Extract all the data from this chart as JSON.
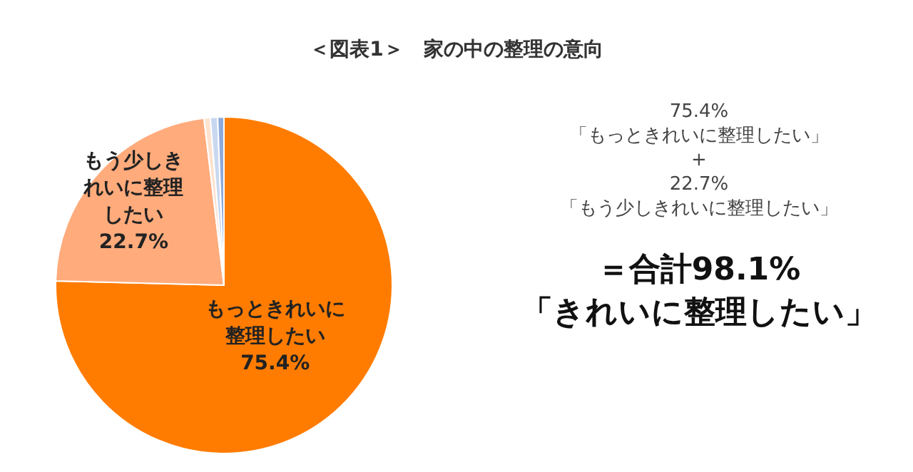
{
  "chart_data": {
    "type": "pie",
    "title": "＜図表1＞　家の中の整理の意向",
    "categories": [
      "もっときれいに整理したい",
      "もう少しきれいに整理したい",
      null,
      null,
      null
    ],
    "values": [
      75.4,
      22.7,
      0.6,
      0.7,
      0.6
    ],
    "colors": [
      "#ff7c00",
      "#ffab7c",
      "#fde3cf",
      "#c9d8f0",
      "#8eaadb"
    ],
    "value_labels": [
      "75.4%",
      "22.7%",
      null,
      null,
      null
    ],
    "annotations": [
      "75.4%",
      "「もっときれいに整理したい」",
      "+",
      "22.7%",
      "「もう少しきれいに整理したい」",
      "＝合計98.1%",
      "「きれいに整理したい」"
    ]
  }
}
